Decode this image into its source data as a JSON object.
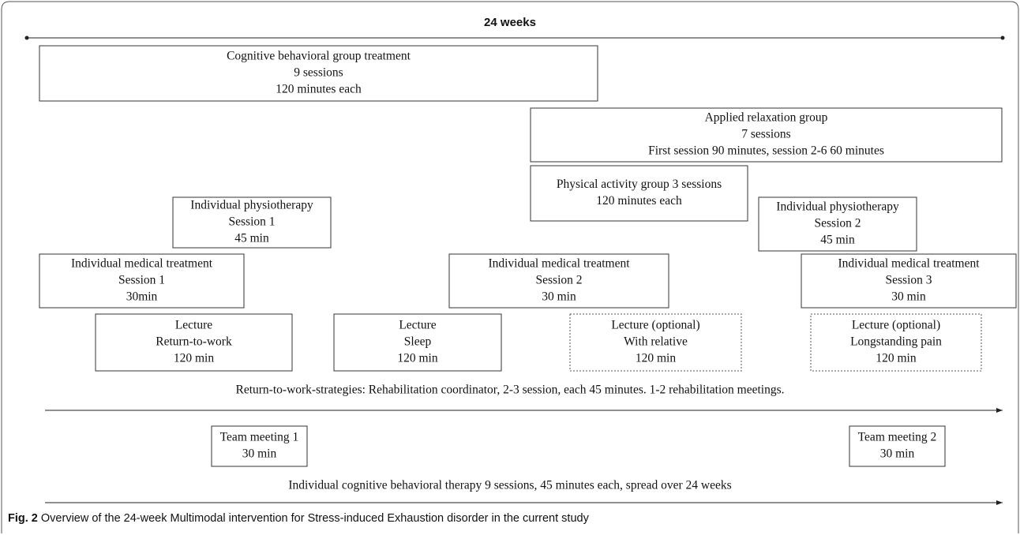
{
  "header": {
    "title": "24 weeks"
  },
  "boxes": [
    {
      "lines": [
        "Cognitive behavioral group treatment",
        "9 sessions",
        "120  minutes each"
      ]
    },
    {
      "lines": [
        "Applied relaxation group",
        "7 sessions",
        "First session 90 minutes, session 2-6 60 minutes"
      ]
    },
    {
      "lines": [
        "Physical activity group 3 sessions",
        "120 minutes each"
      ]
    },
    {
      "lines": [
        "Individual physiotherapy",
        "Session 1",
        "45 min"
      ]
    },
    {
      "lines": [
        "Individual physiotherapy",
        "Session 2",
        "45 min"
      ]
    },
    {
      "lines": [
        "Individual medical treatment",
        "Session 1",
        "30min"
      ]
    },
    {
      "lines": [
        "Individual medical treatment",
        "Session 2",
        "30 min"
      ]
    },
    {
      "lines": [
        "Individual medical treatment",
        "Session 3",
        "30 min"
      ]
    },
    {
      "lines": [
        "Lecture",
        "Return-to-work",
        "120 min"
      ]
    },
    {
      "lines": [
        "Lecture",
        "Sleep",
        "120 min"
      ]
    },
    {
      "lines": [
        "Lecture  (optional)",
        "With relative",
        "120 min"
      ]
    },
    {
      "lines": [
        "Lecture (optional)",
        "Longstanding  pain",
        "120 min"
      ]
    },
    {
      "lines": [
        "Team meeting 1",
        "30 min"
      ]
    },
    {
      "lines": [
        "Team meeting 2",
        "30 min"
      ]
    }
  ],
  "strategies": [
    "Return-to-work-strategies: Rehabilitation coordinator, 2-3 session, each 45 minutes. 1-2 rehabilitation meetings.",
    "Individual cognitive behavioral therapy 9 sessions, 45 minutes each, spread over 24 weeks"
  ],
  "caption": {
    "label": "Fig. 2",
    "text": "Overview of the 24-week Multimodal intervention for Stress-induced Exhaustion disorder in the current study"
  }
}
